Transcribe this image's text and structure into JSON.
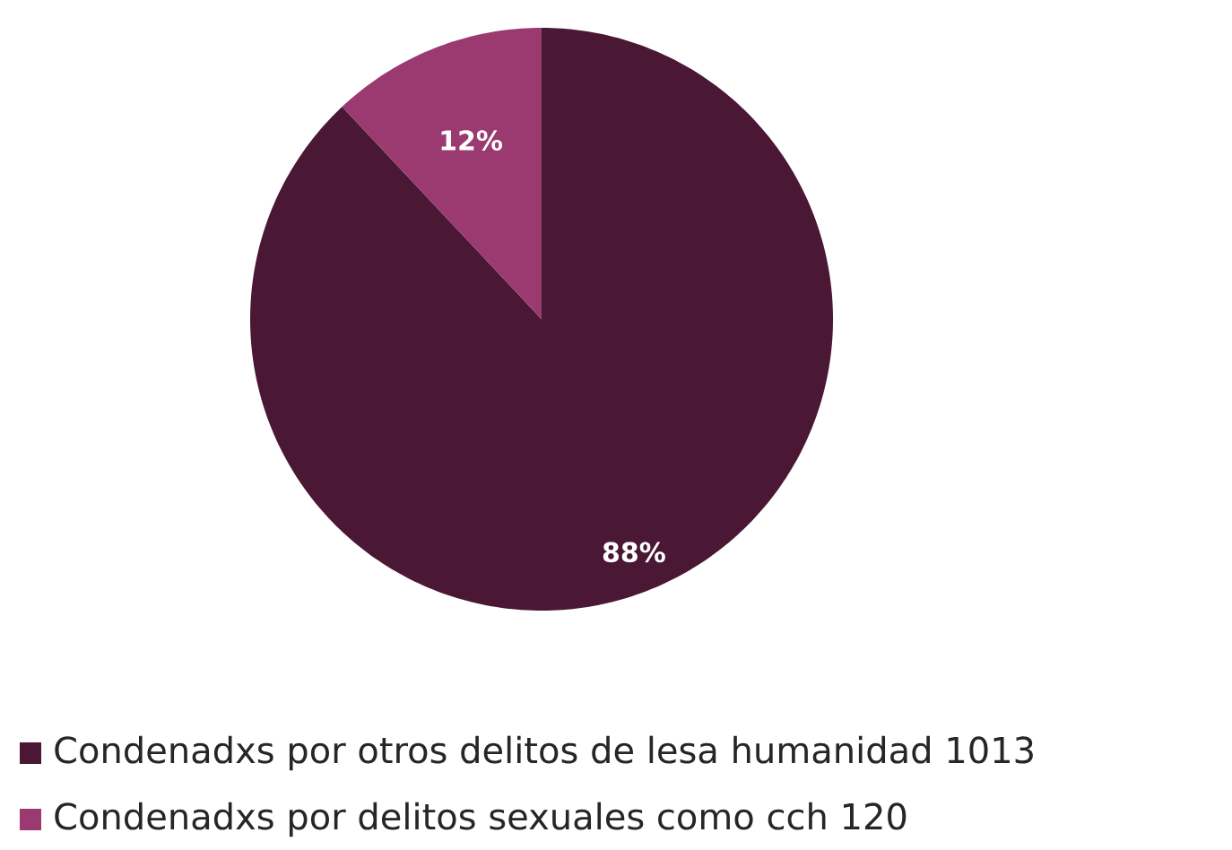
{
  "chart_data": {
    "type": "pie",
    "categories": [
      "Condenadxs por otros delitos de lesa humanidad 1013",
      "Condenadxs por delitos sexuales como cch 120"
    ],
    "values": [
      88,
      12
    ],
    "value_labels": [
      "88%",
      "12%"
    ],
    "colors": [
      "#4a1834",
      "#9a3a70"
    ],
    "legend": "bottom"
  }
}
